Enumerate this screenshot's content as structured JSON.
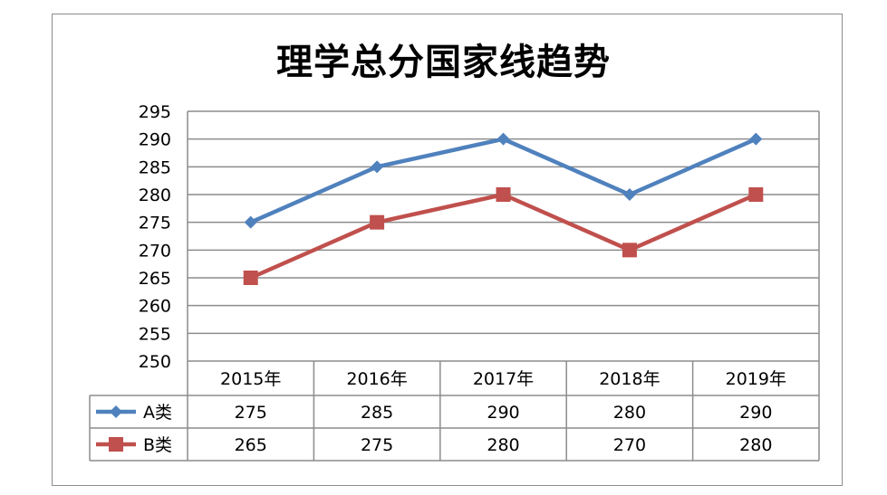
{
  "chart_data": {
    "type": "line",
    "title": "理学总分国家线趋势",
    "categories": [
      "2015年",
      "2016年",
      "2017年",
      "2018年",
      "2019年"
    ],
    "series": [
      {
        "name": "A类",
        "values": [
          275,
          285,
          290,
          280,
          290
        ],
        "color": "#4f81bd",
        "marker": "diamond"
      },
      {
        "name": "B类",
        "values": [
          265,
          275,
          280,
          270,
          280
        ],
        "color": "#c0504d",
        "marker": "square"
      }
    ],
    "ylim": [
      250,
      295
    ],
    "yticks": [
      250,
      255,
      260,
      265,
      270,
      275,
      280,
      285,
      290,
      295
    ],
    "grid": true,
    "legend": "data-table"
  }
}
